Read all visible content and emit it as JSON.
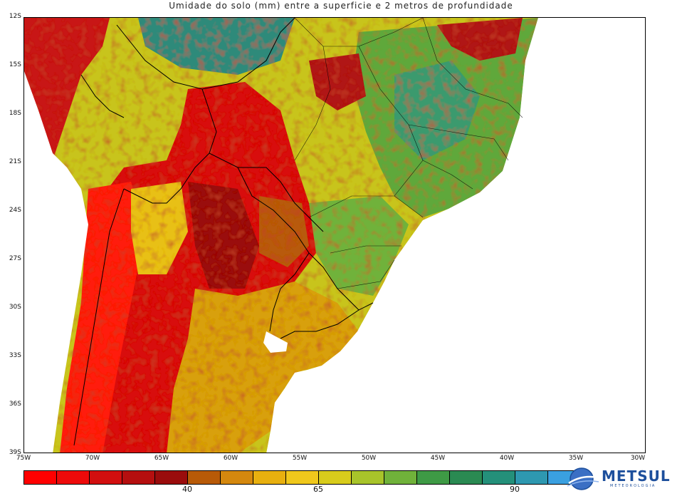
{
  "title": "Umidade do solo (mm) entre a superficie e 2 metros de profundidade",
  "map": {
    "lat_labels": [
      "12S",
      "15S",
      "18S",
      "21S",
      "24S",
      "27S",
      "30S",
      "33S",
      "36S",
      "39S"
    ],
    "lon_labels": [
      "75W",
      "70W",
      "65W",
      "60W",
      "55W",
      "50W",
      "45W",
      "40W",
      "35W",
      "30W"
    ],
    "extent": {
      "lon_min": -75,
      "lon_max": -30,
      "lat_min": -39,
      "lat_max": -12
    }
  },
  "colorbar": {
    "colors": [
      "#ff0000",
      "#ee0a0a",
      "#d20f0f",
      "#b50f0f",
      "#9a0c0c",
      "#b85a07",
      "#d4880e",
      "#e8b00f",
      "#f0c81c",
      "#d8cc1c",
      "#a8c42a",
      "#70b23a",
      "#3e9a45",
      "#2a8a52",
      "#24907a",
      "#2e98b0",
      "#3aa0e0"
    ],
    "labels": [
      {
        "text": "40",
        "index": 5
      },
      {
        "text": "65",
        "index": 9
      },
      {
        "text": "90",
        "index": 15
      }
    ]
  },
  "logo": {
    "name": "METSUL",
    "subtitle": "METEOROLOGIA"
  }
}
